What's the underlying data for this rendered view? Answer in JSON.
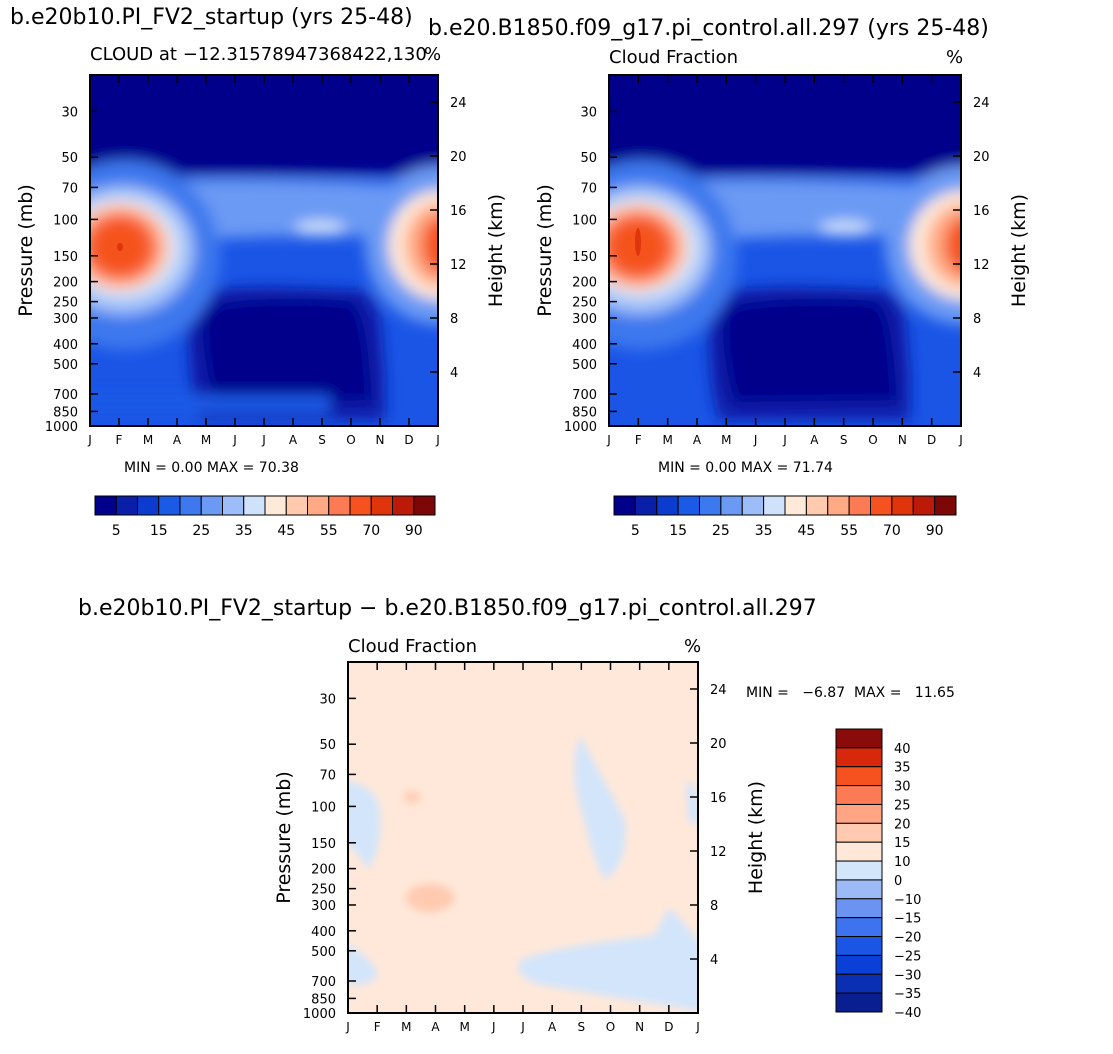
{
  "page": {
    "title_left": "b.e20b10.PI_FV2_startup (yrs 25-48)",
    "title_right": "b.e20.B1850.f09_g17.pi_control.all.297 (yrs 25-48)",
    "title_diff": "b.e20b10.PI_FV2_startup − b.e20.B1850.f09_g17.pi_control.all.297"
  },
  "palettes": {
    "cloud": [
      "#00008b",
      "#0a1fa8",
      "#0b3ccf",
      "#1a5ae6",
      "#3d78ee",
      "#6a9af4",
      "#9dbdf8",
      "#d0e2fb",
      "#ffe9d9",
      "#ffcaae",
      "#ffaa84",
      "#fd7b54",
      "#f5521f",
      "#e0340c",
      "#bb1a08",
      "#7d0606"
    ],
    "diff": [
      "#0a1f8f",
      "#0b2fb3",
      "#0b40d6",
      "#1a55e6",
      "#3d73ee",
      "#6a93f2",
      "#9cbbf6",
      "#d3e5fb",
      "#ffe8d9",
      "#ffcab0",
      "#ffa584",
      "#fd7b54",
      "#f5521f",
      "#d8280b",
      "#8b0b0b"
    ]
  },
  "chart_data": [
    {
      "type": "heatmap",
      "title": "CLOUD at −12.31578947368422,130",
      "units": "%",
      "xlabel": "",
      "ylabel": "Pressure (mb)",
      "ylabel_right": "Height (km)",
      "x_ticks": [
        "J",
        "F",
        "M",
        "A",
        "M",
        "J",
        "J",
        "A",
        "S",
        "O",
        "N",
        "D",
        "J"
      ],
      "y_ticks": [
        30,
        50,
        70,
        100,
        150,
        200,
        250,
        300,
        400,
        500,
        700,
        850,
        1000
      ],
      "y2_ticks": [
        24,
        20,
        16,
        12,
        8,
        4
      ],
      "y_log": true,
      "ylim": [
        1000,
        20
      ],
      "stats": {
        "min": "0.00",
        "max": "70.38"
      },
      "stats_text": "MIN =    0.00  MAX =   70.38",
      "colorbar_labels": [
        "5",
        "15",
        "25",
        "35",
        "45",
        "55",
        "70",
        "90"
      ],
      "features": {
        "left_peak": 70.38,
        "right_peak": 62
      }
    },
    {
      "type": "heatmap",
      "title": "Cloud Fraction",
      "units": "%",
      "xlabel": "",
      "ylabel": "Pressure (mb)",
      "ylabel_right": "Height (km)",
      "x_ticks": [
        "J",
        "F",
        "M",
        "A",
        "M",
        "J",
        "J",
        "A",
        "S",
        "O",
        "N",
        "D",
        "J"
      ],
      "y_ticks": [
        30,
        50,
        70,
        100,
        150,
        200,
        250,
        300,
        400,
        500,
        700,
        850,
        1000
      ],
      "y2_ticks": [
        24,
        20,
        16,
        12,
        8,
        4
      ],
      "y_log": true,
      "ylim": [
        1000,
        20
      ],
      "stats": {
        "min": "0.00",
        "max": "71.74"
      },
      "stats_text": "MIN =    0.00  MAX =   71.74",
      "colorbar_labels": [
        "5",
        "15",
        "25",
        "35",
        "45",
        "55",
        "70",
        "90"
      ],
      "features": {
        "left_peak": 71.74,
        "right_peak": 63
      }
    },
    {
      "type": "heatmap",
      "title": "Cloud Fraction",
      "units": "%",
      "xlabel": "",
      "ylabel": "Pressure (mb)",
      "ylabel_right": "Height (km)",
      "x_ticks": [
        "J",
        "F",
        "M",
        "A",
        "M",
        "J",
        "J",
        "A",
        "S",
        "O",
        "N",
        "D",
        "J"
      ],
      "y_ticks": [
        30,
        50,
        70,
        100,
        150,
        200,
        250,
        300,
        400,
        500,
        700,
        850,
        1000
      ],
      "y2_ticks": [
        24,
        20,
        16,
        12,
        8,
        4
      ],
      "y_log": true,
      "ylim": [
        1000,
        20
      ],
      "stats": {
        "min": "-6.87",
        "max": "11.65"
      },
      "stats_text": "MIN =   −6.87  MAX =   11.65",
      "colorbar_labels": [
        "40",
        "35",
        "30",
        "25",
        "20",
        "15",
        "10",
        "0",
        "−10",
        "−15",
        "−20",
        "−25",
        "−30",
        "−35",
        "−40"
      ]
    }
  ]
}
